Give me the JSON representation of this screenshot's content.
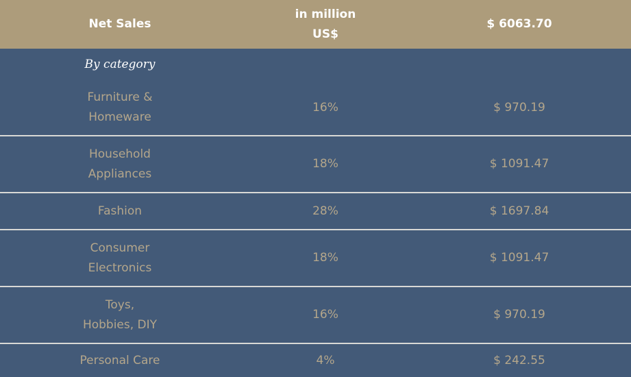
{
  "header": {
    "title": "Net Sales",
    "unit_line1": "in million",
    "unit_line2": "US$",
    "total": "$ 6063.70"
  },
  "subheading": "By category",
  "rows": [
    {
      "category": "Furniture &\nHomeware",
      "share": "16%",
      "amount": "$ 970.19"
    },
    {
      "category": "Household\nAppliances",
      "share": "18%",
      "amount": "$ 1091.47"
    },
    {
      "category": "Fashion",
      "share": "28%",
      "amount": "$ 1697.84"
    },
    {
      "category": "Consumer\nElectronics",
      "share": "18%",
      "amount": "$ 1091.47"
    },
    {
      "category": "Toys,\nHobbies, DIY",
      "share": "16%",
      "amount": "$ 970.19"
    },
    {
      "category": "Personal Care",
      "share": "4%",
      "amount": "$ 242.55"
    }
  ],
  "colors": {
    "header_bg": "#ad9c7b",
    "body_bg": "#435a78",
    "header_text": "#ffffff",
    "body_text": "#b4a68b",
    "divider": "#d9d9d6"
  }
}
